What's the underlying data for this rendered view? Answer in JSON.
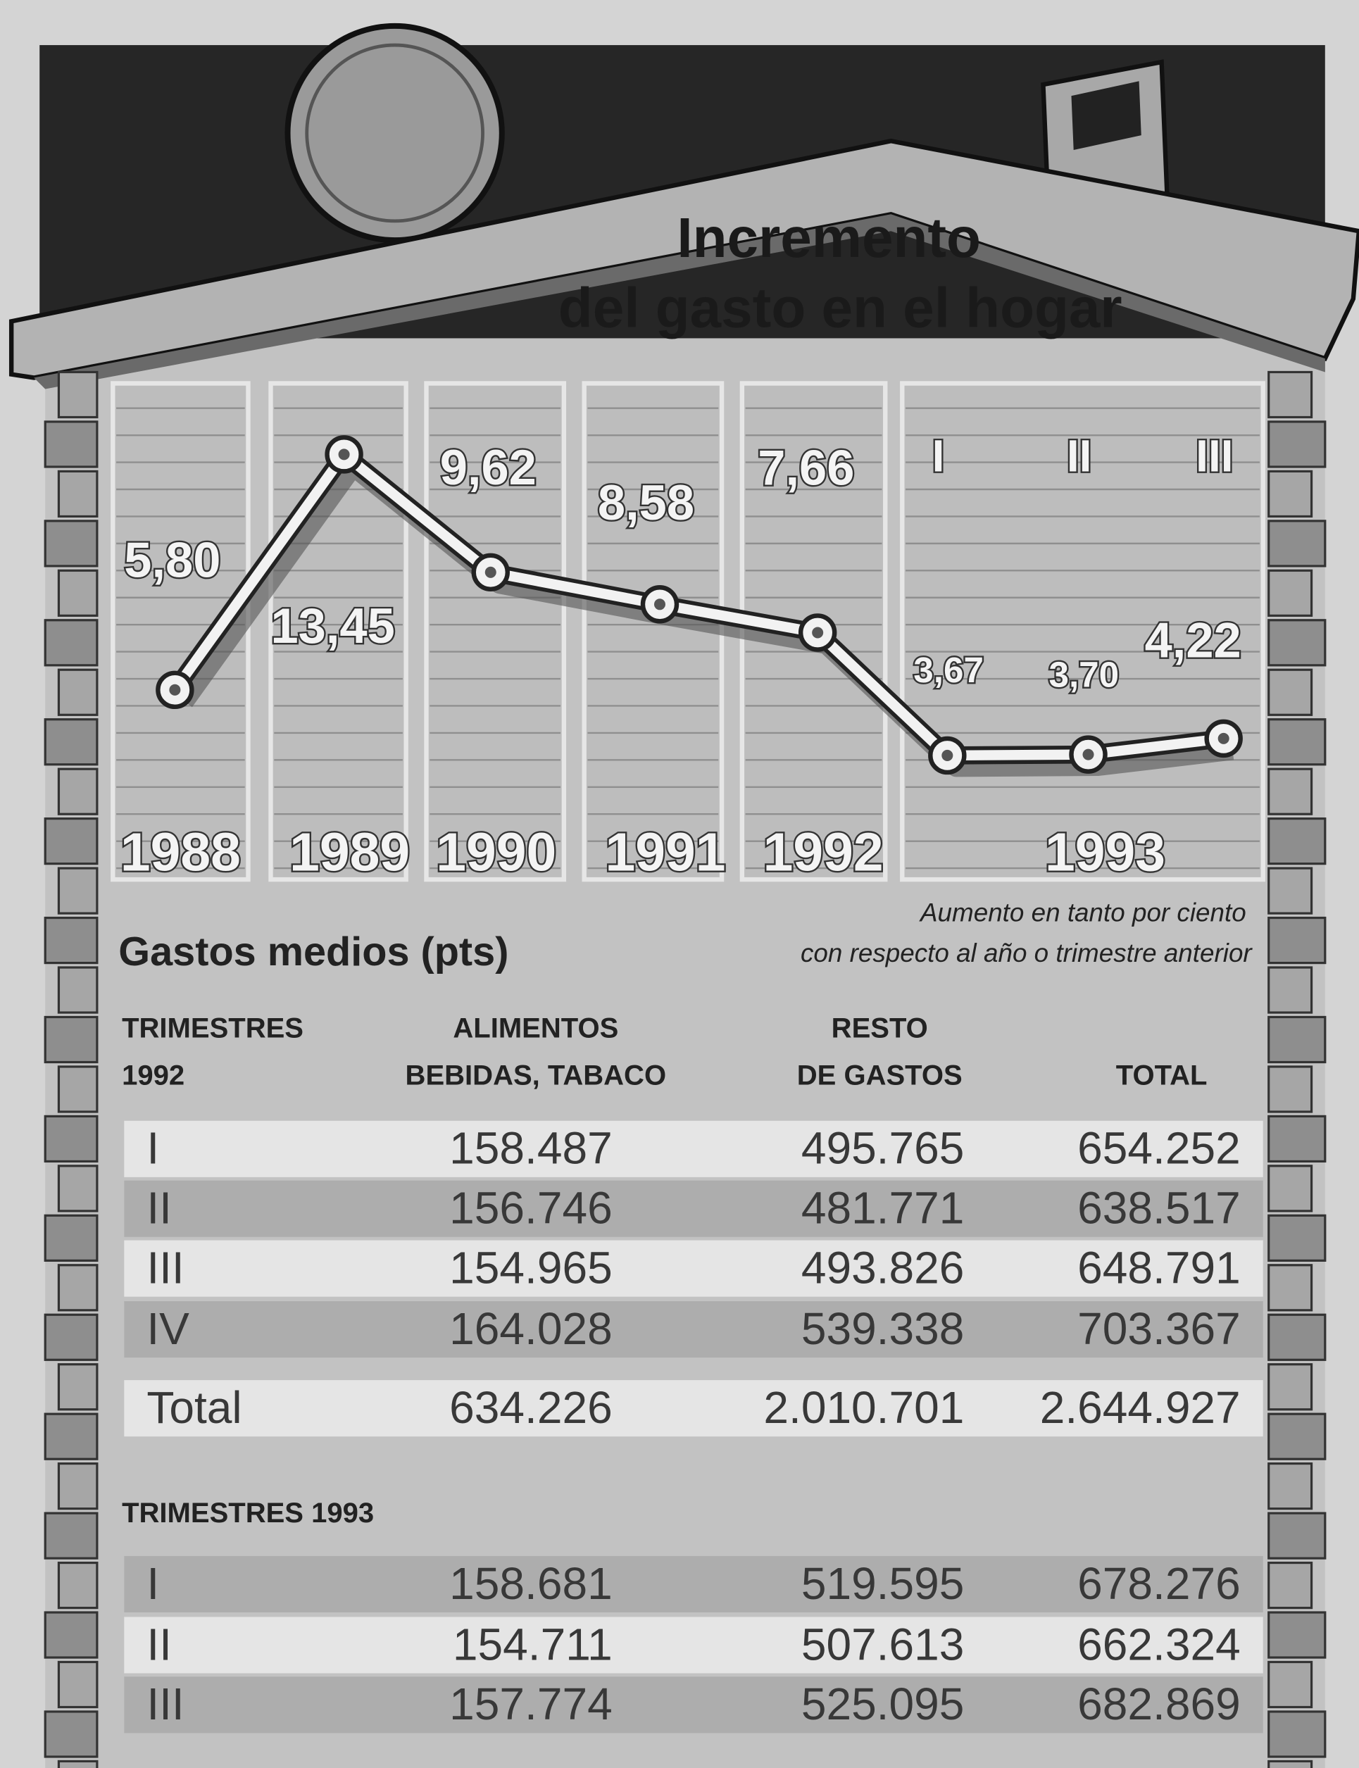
{
  "chart_data": {
    "type": "line",
    "title": [
      "Incremento",
      "del gasto en el hogar"
    ],
    "subtitle": [
      "Aumento en tanto por ciento",
      "con respecto al año o trimestre anterior"
    ],
    "categories": [
      "1988",
      "1989",
      "1990",
      "1991",
      "1992",
      "I",
      "II",
      "III"
    ],
    "group_label": "1993",
    "values": [
      5.8,
      13.45,
      9.62,
      8.58,
      7.66,
      3.67,
      3.7,
      4.22
    ],
    "value_labels": [
      "5,80",
      "13,45",
      "9,62",
      "8,58",
      "7,66",
      "3,67",
      "3,70",
      "4,22"
    ],
    "color": "#f2f2f2"
  },
  "table": {
    "title": "Gastos medios (pts)",
    "header": [
      [
        "TRIMESTRES",
        "1992"
      ],
      [
        "ALIMENTOS",
        "BEBIDAS, TABACO"
      ],
      [
        "RESTO",
        "DE GASTOS"
      ],
      [
        "TOTAL"
      ]
    ],
    "rows": [
      [
        "I",
        "158.487",
        "495.765",
        "654.252"
      ],
      [
        "II",
        "156.746",
        "481.771",
        "638.517"
      ],
      [
        "III",
        "154.965",
        "493.826",
        "648.791"
      ],
      [
        "IV",
        "164.028",
        "539.338",
        "703.367"
      ],
      [
        "Total",
        "634.226",
        "2.010.701",
        "2.644.927"
      ]
    ],
    "section_title": "TRIMESTRES 1993",
    "rows_1993": [
      [
        "I",
        "158.681",
        "519.595",
        "678.276"
      ],
      [
        "II",
        "154.711",
        "507.613",
        "662.324"
      ],
      [
        "III",
        "157.774",
        "525.095",
        "682.869"
      ]
    ]
  }
}
